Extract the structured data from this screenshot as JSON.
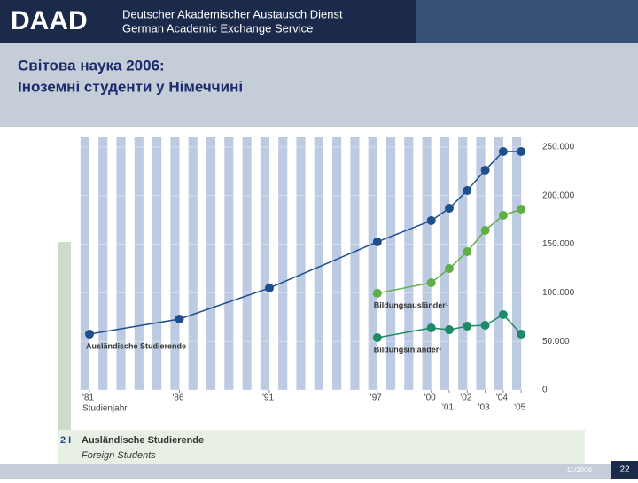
{
  "header": {
    "logo": "DAAD",
    "name_de": "Deutscher Akademischer Austausch Dienst",
    "name_en": "German Academic Exchange Service"
  },
  "slide_title": [
    "Світова наука 2006:",
    "Іноземні студенти у Німеччині"
  ],
  "caption": {
    "number": "2 I",
    "title": "Ausländische Studierende",
    "subtitle": "Foreign Students"
  },
  "footer": {
    "date": "11/2006",
    "page": "22"
  },
  "chart_data": {
    "type": "line",
    "x_label": "Studienjahr",
    "x": [
      1981,
      1986,
      1991,
      1997,
      2000,
      2001,
      2002,
      2003,
      2004,
      2005
    ],
    "series": [
      {
        "name": "Ausländische Studierende",
        "color": "#1f4e8c",
        "values": [
          57500,
          73000,
          105000,
          152400,
          174300,
          187000,
          205300,
          226300,
          245400,
          245400
        ]
      },
      {
        "name": "Bildungsausländer¹",
        "color": "#5fae46",
        "values": [
          null,
          null,
          null,
          99500,
          110400,
          125000,
          142300,
          164200,
          179700,
          186100
        ]
      },
      {
        "name": "Bildungsinländer¹",
        "color": "#1e8a66",
        "values": [
          null,
          null,
          null,
          53800,
          63900,
          62000,
          65700,
          66600,
          77600,
          57500
        ]
      }
    ],
    "xlim": [
      1980,
      2006
    ],
    "xticks": [
      {
        "value": 1981,
        "label": "'81"
      },
      {
        "value": 1986,
        "label": "'86"
      },
      {
        "value": 1991,
        "label": "'91"
      },
      {
        "value": 1997,
        "label": "'97"
      },
      {
        "value": 2000,
        "label": "'00"
      },
      {
        "value": 2001,
        "label": "'01"
      },
      {
        "value": 2002,
        "label": "'02"
      },
      {
        "value": 2003,
        "label": "'03"
      },
      {
        "value": 2004,
        "label": "'04"
      },
      {
        "value": 2005,
        "label": "'05"
      }
    ],
    "ylim": [
      0,
      260000
    ],
    "yticks": [
      0,
      {
        "value": 50000,
        "label": "50.000"
      },
      {
        "value": 100000,
        "label": "100.000"
      },
      {
        "value": 150000,
        "label": "150.000"
      },
      {
        "value": 200000,
        "label": "200.000"
      },
      {
        "value": 250000,
        "label": "250.000"
      }
    ]
  }
}
